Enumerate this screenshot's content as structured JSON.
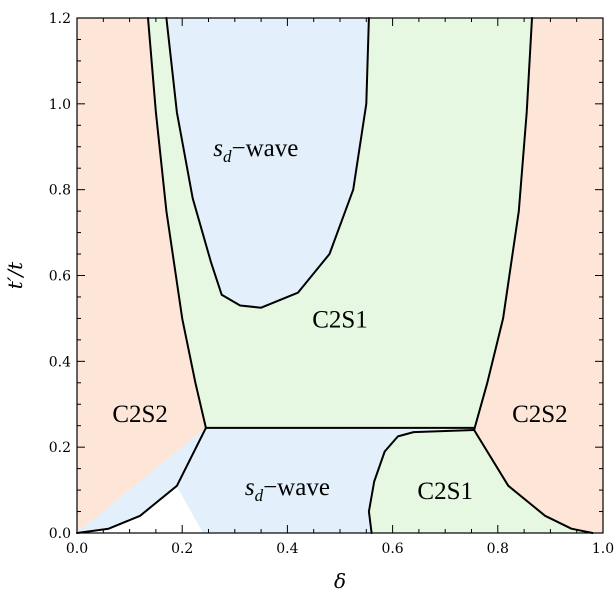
{
  "chart_data": {
    "type": "area",
    "title": "",
    "xlabel": "δ",
    "ylabel": "t′/t",
    "xlim": [
      0.0,
      1.0
    ],
    "ylim": [
      0.0,
      1.2
    ],
    "x_ticks": [
      0.0,
      0.2,
      0.4,
      0.6,
      0.8,
      1.0
    ],
    "x_tick_labels": [
      "0.0",
      "0.2",
      "0.4",
      "0.6",
      "0.8",
      "1.0"
    ],
    "y_ticks": [
      0.0,
      0.2,
      0.4,
      0.6,
      0.8,
      1.0,
      1.2
    ],
    "y_tick_labels": [
      "0.0",
      "0.2",
      "0.4",
      "0.6",
      "0.8",
      "1.0",
      "1.2"
    ],
    "grid": false,
    "colors": {
      "c2s2": "#fde6d8",
      "c2s1": "#e6f8e2",
      "sd_wave": "#e3f0fb",
      "boundary": "#000000"
    },
    "regions": [
      {
        "name": "C2S2",
        "fill": "c2s2",
        "polygon": [
          [
            0.0,
            0.0
          ],
          [
            0.06,
            0.01
          ],
          [
            0.12,
            0.04
          ],
          [
            0.19,
            0.11
          ],
          [
            0.245,
            0.245
          ],
          [
            0.225,
            0.35
          ],
          [
            0.2,
            0.5
          ],
          [
            0.17,
            0.75
          ],
          [
            0.15,
            0.98
          ],
          [
            0.135,
            1.2
          ],
          [
            0.0,
            1.2
          ]
        ]
      },
      {
        "name": "C2S2",
        "fill": "c2s2",
        "polygon": [
          [
            1.0,
            0.0
          ],
          [
            0.98,
            0.0
          ],
          [
            0.94,
            0.01
          ],
          [
            0.89,
            0.04
          ],
          [
            0.82,
            0.11
          ],
          [
            0.755,
            0.24
          ],
          [
            0.78,
            0.35
          ],
          [
            0.81,
            0.5
          ],
          [
            0.84,
            0.75
          ],
          [
            0.855,
            0.98
          ],
          [
            0.865,
            1.2
          ],
          [
            1.0,
            1.2
          ]
        ]
      },
      {
        "name": "C2S1",
        "fill": "c2s1",
        "polygon": [
          [
            0.245,
            0.245
          ],
          [
            0.755,
            0.245
          ],
          [
            0.78,
            0.35
          ],
          [
            0.81,
            0.5
          ],
          [
            0.84,
            0.75
          ],
          [
            0.855,
            0.98
          ],
          [
            0.865,
            1.2
          ],
          [
            0.555,
            1.2
          ],
          [
            0.55,
            1.0
          ],
          [
            0.525,
            0.8
          ],
          [
            0.48,
            0.65
          ],
          [
            0.42,
            0.56
          ],
          [
            0.35,
            0.525
          ],
          [
            0.31,
            0.53
          ],
          [
            0.275,
            0.555
          ],
          [
            0.255,
            0.63
          ],
          [
            0.22,
            0.78
          ],
          [
            0.19,
            0.98
          ],
          [
            0.17,
            1.2
          ],
          [
            0.135,
            1.2
          ],
          [
            0.15,
            0.98
          ],
          [
            0.17,
            0.75
          ],
          [
            0.2,
            0.5
          ],
          [
            0.225,
            0.35
          ]
        ]
      },
      {
        "name": "s_d-wave",
        "fill": "sd_wave",
        "polygon": [
          [
            0.17,
            1.2
          ],
          [
            0.19,
            0.98
          ],
          [
            0.22,
            0.78
          ],
          [
            0.255,
            0.63
          ],
          [
            0.275,
            0.555
          ],
          [
            0.31,
            0.53
          ],
          [
            0.35,
            0.525
          ],
          [
            0.42,
            0.56
          ],
          [
            0.48,
            0.65
          ],
          [
            0.525,
            0.8
          ],
          [
            0.55,
            1.0
          ],
          [
            0.555,
            1.2
          ]
        ]
      },
      {
        "name": "s_d-wave",
        "fill": "sd_wave",
        "polygon": [
          [
            0.245,
            0.245
          ],
          [
            0.755,
            0.24
          ],
          [
            0.64,
            0.235
          ],
          [
            0.61,
            0.225
          ],
          [
            0.585,
            0.19
          ],
          [
            0.565,
            0.12
          ],
          [
            0.555,
            0.05
          ],
          [
            0.56,
            0.0
          ],
          [
            0.24,
            0.0
          ],
          [
            0.19,
            0.11
          ],
          [
            0.12,
            0.04
          ],
          [
            0.06,
            0.01
          ],
          [
            0.0,
            0.0
          ]
        ]
      },
      {
        "name": "C2S1",
        "fill": "c2s1",
        "polygon": [
          [
            0.56,
            0.0
          ],
          [
            0.555,
            0.05
          ],
          [
            0.565,
            0.12
          ],
          [
            0.585,
            0.19
          ],
          [
            0.61,
            0.225
          ],
          [
            0.64,
            0.235
          ],
          [
            0.755,
            0.24
          ],
          [
            0.82,
            0.11
          ],
          [
            0.89,
            0.04
          ],
          [
            0.94,
            0.01
          ],
          [
            0.98,
            0.0
          ]
        ]
      }
    ],
    "boundaries": [
      {
        "name": "left-outer",
        "points": [
          [
            0.0,
            0.0
          ],
          [
            0.06,
            0.01
          ],
          [
            0.12,
            0.04
          ],
          [
            0.19,
            0.11
          ],
          [
            0.245,
            0.245
          ],
          [
            0.225,
            0.35
          ],
          [
            0.2,
            0.5
          ],
          [
            0.17,
            0.75
          ],
          [
            0.15,
            0.98
          ],
          [
            0.135,
            1.2
          ]
        ]
      },
      {
        "name": "right-outer",
        "points": [
          [
            0.98,
            0.0
          ],
          [
            0.94,
            0.01
          ],
          [
            0.89,
            0.04
          ],
          [
            0.82,
            0.11
          ],
          [
            0.755,
            0.24
          ],
          [
            0.78,
            0.35
          ],
          [
            0.81,
            0.5
          ],
          [
            0.84,
            0.75
          ],
          [
            0.855,
            0.98
          ],
          [
            0.865,
            1.2
          ]
        ]
      },
      {
        "name": "upper-dome",
        "points": [
          [
            0.17,
            1.2
          ],
          [
            0.19,
            0.98
          ],
          [
            0.22,
            0.78
          ],
          [
            0.255,
            0.63
          ],
          [
            0.275,
            0.555
          ],
          [
            0.31,
            0.53
          ],
          [
            0.35,
            0.525
          ],
          [
            0.42,
            0.56
          ],
          [
            0.48,
            0.65
          ],
          [
            0.525,
            0.8
          ],
          [
            0.55,
            1.0
          ],
          [
            0.555,
            1.2
          ]
        ]
      },
      {
        "name": "horizontal",
        "points": [
          [
            0.245,
            0.245
          ],
          [
            0.755,
            0.245
          ]
        ]
      },
      {
        "name": "lower-c2s1",
        "points": [
          [
            0.56,
            0.0
          ],
          [
            0.555,
            0.05
          ],
          [
            0.565,
            0.12
          ],
          [
            0.585,
            0.19
          ],
          [
            0.61,
            0.225
          ],
          [
            0.64,
            0.235
          ],
          [
            0.755,
            0.24
          ]
        ]
      }
    ],
    "labels": [
      {
        "text": "C2S2",
        "x": 0.12,
        "y": 0.28,
        "italic_prefix": ""
      },
      {
        "text": "C2S2",
        "x": 0.88,
        "y": 0.28,
        "italic_prefix": ""
      },
      {
        "text": "C2S1",
        "x": 0.5,
        "y": 0.5,
        "italic_prefix": ""
      },
      {
        "text": "C2S1",
        "x": 0.7,
        "y": 0.1,
        "italic_prefix": ""
      },
      {
        "text": "−wave",
        "x": 0.34,
        "y": 0.9,
        "italic_prefix": "s_d"
      },
      {
        "text": "−wave",
        "x": 0.4,
        "y": 0.11,
        "italic_prefix": "s_d"
      }
    ]
  }
}
